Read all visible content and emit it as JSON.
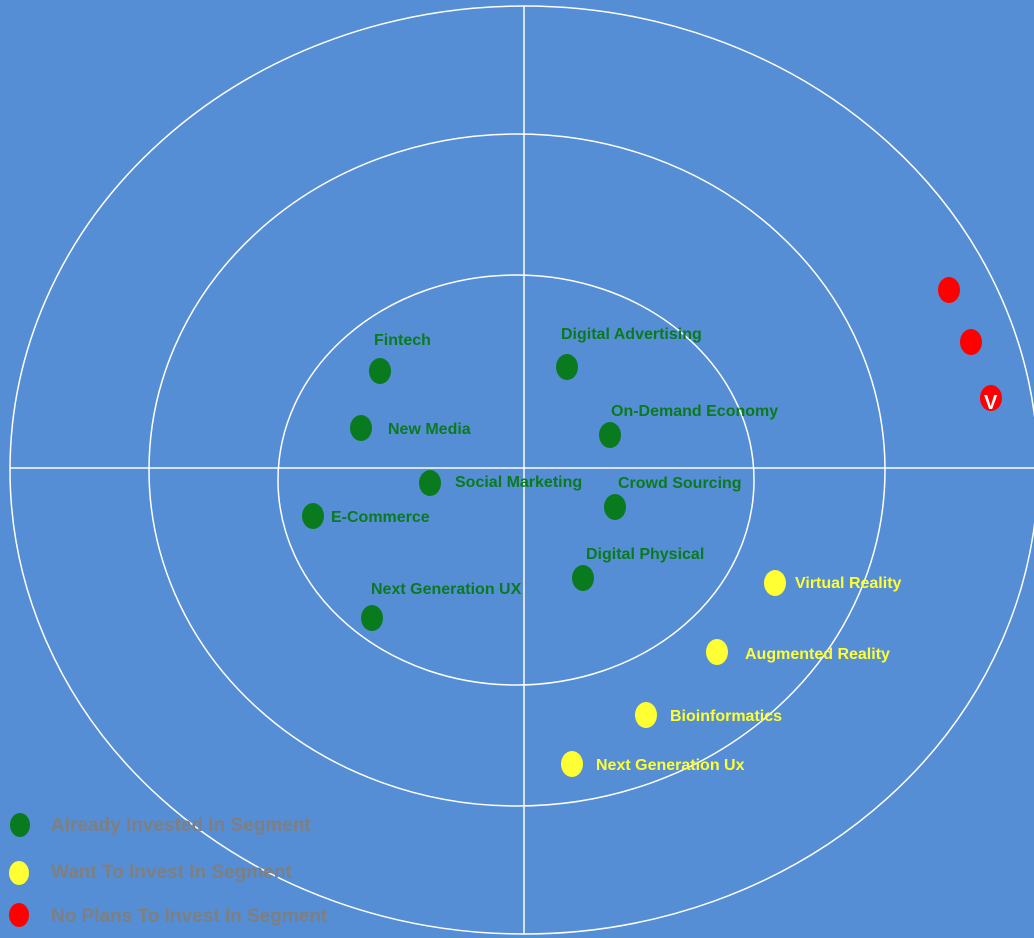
{
  "colors": {
    "background": "#558ed5",
    "lines": "#ffffff",
    "green": "#0a7a1e",
    "yellow": "#ffff33",
    "red": "#ff0000",
    "legend_text": "#7f7f7f"
  },
  "points": [
    {
      "label": "Fintech",
      "group": "green"
    },
    {
      "label": "Digital Advertising",
      "group": "green"
    },
    {
      "label": "New Media",
      "group": "green"
    },
    {
      "label": "On-Demand Economy",
      "group": "green"
    },
    {
      "label": "Social Marketing",
      "group": "green"
    },
    {
      "label": "Crowd Sourcing",
      "group": "green"
    },
    {
      "label": "E-Commerce",
      "group": "green"
    },
    {
      "label": "Digital Physical",
      "group": "green"
    },
    {
      "label": "Next Generation UX",
      "group": "green"
    },
    {
      "label": "Virtual Reality",
      "group": "yellow"
    },
    {
      "label": "Augmented Reality",
      "group": "yellow"
    },
    {
      "label": "Bioinformatics",
      "group": "yellow"
    },
    {
      "label": "Next Generation Ux",
      "group": "yellow"
    },
    {
      "label": "",
      "group": "red"
    },
    {
      "label": "",
      "group": "red"
    },
    {
      "label": "",
      "group": "red",
      "mark": "V"
    }
  ],
  "legend": [
    {
      "label": "Already Invested In Segment",
      "group": "green"
    },
    {
      "label": "Want To Invest In Segment",
      "group": "yellow"
    },
    {
      "label": "No Plans To Invest In Segment",
      "group": "red"
    }
  ]
}
